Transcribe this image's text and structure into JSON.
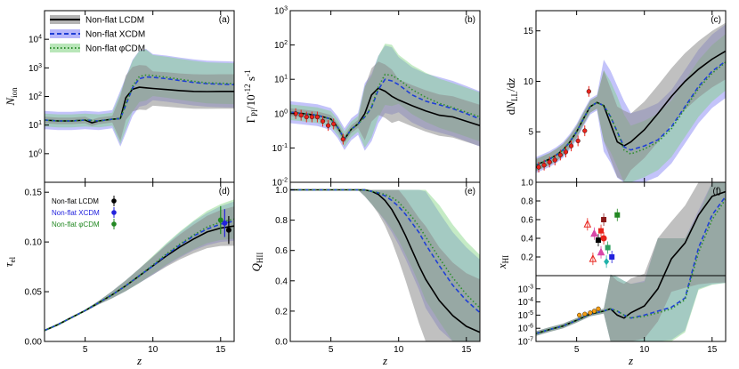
{
  "chart_data": [
    {
      "id": "a",
      "panel_label": "(a)",
      "type": "line",
      "ylabel": "N_ion",
      "xlabel": "",
      "xlim": [
        2,
        16
      ],
      "ylim": [
        0.1,
        100000
      ],
      "yscale": "log",
      "yticks": [
        1,
        10,
        100,
        1000,
        10000
      ],
      "ytick_labels": [
        "10^0",
        "10^1",
        "10^2",
        "10^3",
        "10^4"
      ],
      "xticks": [
        5,
        10,
        15
      ],
      "xtick_labels": [],
      "legend": [
        "Non-flat LCDM",
        "Non-flat XCDM",
        "Non-flat φCDM"
      ],
      "series": [
        {
          "name": "Non-flat LCDM",
          "style": "black-solid",
          "x": [
            2,
            3,
            4,
            5,
            5.5,
            6,
            6.5,
            7,
            7.6,
            8,
            8.5,
            9,
            9.5,
            10,
            11,
            12,
            13,
            14,
            15,
            16
          ],
          "y": [
            15,
            14,
            14,
            15,
            12,
            14,
            15,
            16,
            17,
            90,
            180,
            210,
            200,
            190,
            175,
            160,
            150,
            148,
            150,
            150
          ]
        },
        {
          "name": "Non-flat XCDM",
          "style": "blue-dashed",
          "x": [
            2,
            3,
            4,
            5,
            6,
            7,
            7.6,
            8,
            8.5,
            9,
            9.5,
            10,
            11,
            12,
            13,
            14,
            15,
            16
          ],
          "y": [
            15,
            14,
            14,
            15,
            14,
            16,
            17,
            50,
            200,
            420,
            480,
            470,
            420,
            360,
            310,
            280,
            270,
            260
          ]
        },
        {
          "name": "Non-flat φCDM",
          "style": "green-dotted",
          "x": [
            2,
            3,
            4,
            5,
            6,
            7,
            7.6,
            8,
            8.5,
            9,
            9.5,
            10,
            11,
            12,
            13,
            14,
            15,
            16
          ],
          "y": [
            15,
            14,
            14,
            15,
            14,
            16,
            17,
            55,
            230,
            500,
            560,
            540,
            470,
            400,
            340,
            300,
            290,
            280
          ]
        }
      ]
    },
    {
      "id": "b",
      "panel_label": "(b)",
      "type": "line",
      "ylabel": "Γ_PI / 10^-12 s^-1",
      "xlabel": "",
      "xlim": [
        2,
        16
      ],
      "ylim": [
        0.01,
        1000
      ],
      "yscale": "log",
      "yticks": [
        0.01,
        0.1,
        1,
        10,
        100,
        1000
      ],
      "ytick_labels": [
        "10^-2",
        "10^-1",
        "10^0",
        "10^1",
        "10^2",
        "10^3"
      ],
      "xticks": [
        5,
        10,
        15
      ],
      "series": [
        {
          "name": "Non-flat LCDM",
          "style": "black-solid",
          "x": [
            2,
            3,
            4,
            5,
            5.5,
            6,
            6.5,
            7,
            7.5,
            8,
            8.5,
            9,
            9.5,
            10,
            11,
            12,
            13,
            14,
            15,
            16
          ],
          "y": [
            1.1,
            1.0,
            0.9,
            0.7,
            0.4,
            0.18,
            0.35,
            0.5,
            1.0,
            3.5,
            5.5,
            4.5,
            3.2,
            2.5,
            1.7,
            1.2,
            0.9,
            0.8,
            0.6,
            0.45
          ]
        },
        {
          "name": "Non-flat XCDM",
          "style": "blue-dashed",
          "x": [
            2,
            3,
            4,
            5,
            5.5,
            6,
            6.5,
            7,
            7.5,
            8,
            8.5,
            9,
            9.5,
            10,
            11,
            12,
            13,
            14,
            15,
            16
          ],
          "y": [
            1.1,
            1.0,
            0.9,
            0.7,
            0.4,
            0.18,
            0.35,
            0.5,
            0.8,
            1.5,
            5,
            10,
            9,
            7,
            3.5,
            2.3,
            1.8,
            1.4,
            1.0,
            0.7
          ]
        },
        {
          "name": "Non-flat φCDM",
          "style": "green-dotted",
          "x": [
            2,
            3,
            4,
            5,
            5.5,
            6,
            6.5,
            7,
            7.5,
            8,
            8.5,
            9,
            9.5,
            10,
            11,
            12,
            13,
            14,
            15,
            16
          ],
          "y": [
            1.1,
            1.0,
            0.9,
            0.7,
            0.4,
            0.18,
            0.35,
            0.5,
            0.8,
            1.6,
            6,
            14,
            13,
            10,
            5,
            3,
            2,
            1.5,
            1.1,
            0.8
          ]
        }
      ],
      "observations": {
        "x": [
          2.4,
          2.8,
          3.2,
          3.6,
          4.0,
          4.4,
          4.8,
          5.2,
          5.9
        ],
        "y": [
          1.0,
          0.9,
          0.8,
          0.8,
          0.8,
          0.6,
          0.45,
          0.5,
          0.18
        ]
      }
    },
    {
      "id": "c",
      "panel_label": "(c)",
      "type": "line",
      "ylabel": "dN_LL / dz",
      "xlabel": "",
      "xlim": [
        2,
        16
      ],
      "ylim": [
        0,
        17
      ],
      "yticks": [
        5,
        10,
        15
      ],
      "xticks": [
        5,
        10,
        15
      ],
      "series": [
        {
          "name": "Non-flat LCDM",
          "style": "black-solid",
          "x": [
            2,
            2.5,
            3,
            3.5,
            4,
            4.5,
            5,
            5.5,
            6,
            6.5,
            7,
            7.5,
            8,
            8.5,
            9,
            10,
            11,
            12,
            13,
            14,
            15,
            16
          ],
          "y": [
            1.7,
            2.0,
            2.3,
            2.7,
            3.2,
            4.0,
            5.0,
            6.3,
            7.5,
            7.9,
            7.6,
            5.8,
            4.0,
            3.6,
            4.0,
            5.2,
            6.8,
            8.5,
            10.0,
            11.2,
            12.2,
            13.0
          ]
        },
        {
          "name": "Non-flat XCDM",
          "style": "blue-dashed",
          "x": [
            2,
            2.5,
            3,
            3.5,
            4,
            4.5,
            5,
            5.5,
            6,
            6.5,
            7,
            7.5,
            8,
            8.5,
            9,
            10,
            11,
            12,
            13,
            14,
            15,
            16
          ],
          "y": [
            1.7,
            2.0,
            2.3,
            2.7,
            3.2,
            4.0,
            5.0,
            6.3,
            7.5,
            7.9,
            7.6,
            6.5,
            5.0,
            3.5,
            3.2,
            3.6,
            4.2,
            5.5,
            7.5,
            9.5,
            11.0,
            12.0
          ]
        },
        {
          "name": "Non-flat φCDM",
          "style": "green-dotted",
          "x": [
            2,
            2.5,
            3,
            3.5,
            4,
            4.5,
            5,
            5.5,
            6,
            6.5,
            7,
            7.5,
            8,
            8.5,
            9,
            10,
            11,
            12,
            13,
            14,
            15,
            16
          ],
          "y": [
            1.7,
            2.0,
            2.3,
            2.7,
            3.2,
            4.0,
            5.0,
            6.3,
            7.5,
            7.9,
            7.6,
            6.5,
            5.0,
            3.2,
            2.8,
            3.3,
            4.0,
            5.3,
            7.3,
            9.3,
            10.8,
            11.9
          ]
        }
      ],
      "observations": {
        "x": [
          2.2,
          2.6,
          3.0,
          3.4,
          3.8,
          4.2,
          4.6,
          5.1,
          5.6,
          5.9
        ],
        "y": [
          1.5,
          1.7,
          2.0,
          2.2,
          2.7,
          3.0,
          3.6,
          4.1,
          5.1,
          9.0
        ]
      }
    },
    {
      "id": "d",
      "panel_label": "(d)",
      "type": "line",
      "ylabel": "τ_el",
      "xlabel": "z",
      "xlim": [
        2,
        16
      ],
      "ylim": [
        0,
        0.16
      ],
      "yticks": [
        0,
        0.05,
        0.1,
        0.15
      ],
      "ytick_labels": [
        "0.00",
        "0.05",
        "0.10",
        "0.15"
      ],
      "xticks": [
        5,
        10,
        15
      ],
      "xtick_labels": [
        "5",
        "10",
        "15"
      ],
      "legend": [
        "Non-flat LCDM",
        "Non-flat XCDM",
        "Non-flat φCDM"
      ],
      "series": [
        {
          "name": "Non-flat LCDM",
          "style": "black-solid",
          "x": [
            2,
            3,
            4,
            5,
            6,
            7,
            8,
            9,
            10,
            11,
            12,
            13,
            14,
            15,
            16
          ],
          "y": [
            0.011,
            0.017,
            0.024,
            0.031,
            0.039,
            0.047,
            0.056,
            0.066,
            0.076,
            0.086,
            0.095,
            0.103,
            0.11,
            0.114,
            0.116
          ]
        },
        {
          "name": "Non-flat XCDM",
          "style": "blue-dashed",
          "x": [
            2,
            3,
            4,
            5,
            6,
            7,
            8,
            9,
            10,
            11,
            12,
            13,
            14,
            15,
            16
          ],
          "y": [
            0.011,
            0.017,
            0.024,
            0.031,
            0.039,
            0.047,
            0.056,
            0.066,
            0.076,
            0.087,
            0.097,
            0.106,
            0.113,
            0.118,
            0.121
          ]
        },
        {
          "name": "Non-flat φCDM",
          "style": "green-dotted",
          "x": [
            2,
            3,
            4,
            5,
            6,
            7,
            8,
            9,
            10,
            11,
            12,
            13,
            14,
            15,
            16
          ],
          "y": [
            0.011,
            0.017,
            0.024,
            0.031,
            0.039,
            0.047,
            0.056,
            0.066,
            0.077,
            0.088,
            0.098,
            0.107,
            0.115,
            0.12,
            0.123
          ]
        }
      ],
      "observations": [
        {
          "name": "Non-flat LCDM",
          "x": 15.6,
          "y": 0.112,
          "err": 0.014,
          "color": "#000000"
        },
        {
          "name": "Non-flat XCDM",
          "x": 15.3,
          "y": 0.119,
          "err": 0.014,
          "color": "#2222dd"
        },
        {
          "name": "Non-flat φCDM",
          "x": 15.0,
          "y": 0.122,
          "err": 0.014,
          "color": "#228822"
        }
      ]
    },
    {
      "id": "e",
      "panel_label": "(e)",
      "type": "line",
      "ylabel": "Q_HII",
      "xlabel": "z",
      "xlim": [
        2,
        16
      ],
      "ylim": [
        0,
        1.05
      ],
      "yticks": [
        0,
        0.2,
        0.4,
        0.6,
        0.8,
        1.0
      ],
      "ytick_labels": [
        "0.0",
        "0.2",
        "0.4",
        "0.6",
        "0.8",
        "1.0"
      ],
      "xticks": [
        5,
        10,
        15
      ],
      "xtick_labels": [
        "5",
        "10",
        "15"
      ],
      "series": [
        {
          "name": "Non-flat LCDM",
          "style": "black-solid",
          "x": [
            2,
            6,
            7,
            7.5,
            8,
            8.5,
            9,
            9.5,
            10,
            10.5,
            11,
            11.5,
            12,
            13,
            14,
            15,
            16
          ],
          "y": [
            1.0,
            1.0,
            1.0,
            1.0,
            0.99,
            0.97,
            0.93,
            0.87,
            0.79,
            0.7,
            0.6,
            0.5,
            0.41,
            0.27,
            0.17,
            0.1,
            0.06
          ]
        },
        {
          "name": "Non-flat XCDM",
          "style": "blue-dashed",
          "x": [
            2,
            6,
            7,
            7.5,
            8,
            8.5,
            9,
            9.5,
            10,
            10.5,
            11,
            11.5,
            12,
            13,
            14,
            15,
            16
          ],
          "y": [
            1.0,
            1.0,
            1.0,
            1.0,
            0.99,
            0.98,
            0.96,
            0.93,
            0.89,
            0.84,
            0.78,
            0.72,
            0.64,
            0.5,
            0.37,
            0.27,
            0.19
          ]
        },
        {
          "name": "Non-flat φCDM",
          "style": "green-dotted",
          "x": [
            2,
            6,
            7,
            7.5,
            8,
            8.5,
            9,
            9.5,
            10,
            10.5,
            11,
            11.5,
            12,
            13,
            14,
            15,
            16
          ],
          "y": [
            1.0,
            1.0,
            1.0,
            1.0,
            0.99,
            0.98,
            0.97,
            0.95,
            0.92,
            0.87,
            0.82,
            0.76,
            0.69,
            0.55,
            0.42,
            0.31,
            0.22
          ]
        }
      ]
    },
    {
      "id": "f",
      "panel_label": "(f)",
      "type": "line",
      "ylabel": "x_HI",
      "xlabel": "z",
      "xlim": [
        2,
        16
      ],
      "ylim_top": [
        0,
        1.0
      ],
      "ylim_bottom_log": [
        1e-07,
        0.01
      ],
      "yticks_top": [
        0.2,
        0.4,
        0.6,
        0.8,
        1.0
      ],
      "ytick_labels_top": [
        "0.2",
        "0.4",
        "0.6",
        "0.8",
        "1.0"
      ],
      "yticks_bottom": [
        0.001,
        0.0001,
        1e-05,
        1e-06,
        1e-07
      ],
      "ytick_labels_bottom": [
        "10^-3",
        "10^-4",
        "10^-5",
        "10^-6",
        "10^-7"
      ],
      "xticks": [
        5,
        10,
        15
      ],
      "xtick_labels": [
        "5",
        "10",
        "15"
      ],
      "series": [
        {
          "name": "Non-flat LCDM",
          "style": "black-solid",
          "x": [
            2,
            3,
            4,
            5,
            6,
            7,
            7.5,
            8,
            8.5,
            9,
            10,
            11,
            12,
            13,
            14,
            15,
            16
          ],
          "y": [
            4e-07,
            8e-07,
            1.5e-06,
            4e-06,
            1.2e-05,
            2e-05,
            3e-05,
            1e-05,
            6e-06,
            1.5e-05,
            5e-05,
            0.001,
            0.18,
            0.35,
            0.65,
            0.85,
            0.9
          ]
        },
        {
          "name": "Non-flat XCDM",
          "style": "blue-dashed",
          "x": [
            2,
            3,
            4,
            5,
            6,
            7,
            7.5,
            8,
            8.5,
            9,
            10,
            11,
            12,
            13,
            14,
            15,
            16
          ],
          "y": [
            4e-07,
            8e-07,
            1.5e-06,
            4e-06,
            1.2e-05,
            2e-05,
            3e-05,
            2e-05,
            1e-05,
            6e-06,
            1e-05,
            2e-05,
            4e-05,
            0.0002,
            0.3,
            0.65,
            0.85
          ]
        },
        {
          "name": "Non-flat φCDM",
          "style": "green-dotted",
          "x": [
            2,
            3,
            4,
            5,
            6,
            7,
            7.5,
            8,
            8.5,
            9,
            10,
            11,
            12,
            13,
            14,
            15,
            16
          ],
          "y": [
            4e-07,
            8e-07,
            1.5e-06,
            4e-06,
            1.2e-05,
            2e-05,
            3e-05,
            2e-05,
            1e-05,
            6e-06,
            8e-06,
            1.5e-05,
            3e-05,
            0.00015,
            0.25,
            0.6,
            0.82
          ]
        }
      ]
    }
  ],
  "colors": {
    "lcdm_band": "#8c8c8c",
    "xcdm_band": "#7a7af5",
    "phicdm_band": "#7fd27f",
    "xcdm_line": "#1f3fd6",
    "phicdm_line": "#2f8f2f",
    "obs_red": "#e8241c",
    "obs_orange": "#f39c12"
  }
}
